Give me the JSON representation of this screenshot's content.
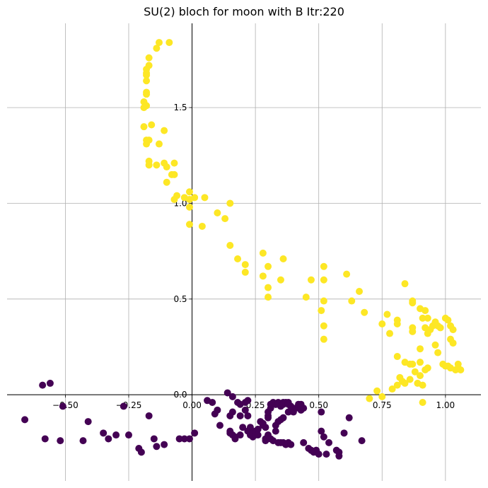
{
  "chart_data": {
    "type": "scatter",
    "title": "SU(2) bloch for moon with B Itr:220",
    "xlabel": "",
    "ylabel": "",
    "xlim": [
      -0.73,
      1.14
    ],
    "ylim": [
      -0.45,
      1.94
    ],
    "x_ticks": [
      -0.5,
      -0.25,
      0.0,
      0.25,
      0.5,
      0.75,
      1.0
    ],
    "x_tick_labels": [
      "−0.50",
      "−0.25",
      "0.00",
      "0.25",
      "0.50",
      "0.75",
      "1.00"
    ],
    "y_ticks": [
      0.0,
      0.5,
      1.0,
      1.5
    ],
    "y_tick_labels": [
      "0.0",
      "0.5",
      "1.0",
      "1.5"
    ],
    "grid": true,
    "axes_through_origin": true,
    "legend": "none",
    "series": [
      {
        "color": "#fde725",
        "points": [
          [
            -0.13,
            1.84
          ],
          [
            -0.09,
            1.84
          ],
          [
            -0.14,
            1.81
          ],
          [
            -0.17,
            1.76
          ],
          [
            -0.17,
            1.72
          ],
          [
            -0.18,
            1.7
          ],
          [
            -0.18,
            1.68
          ],
          [
            -0.18,
            1.67
          ],
          [
            -0.18,
            1.64
          ],
          [
            -0.18,
            1.58
          ],
          [
            -0.18,
            1.57
          ],
          [
            -0.19,
            1.53
          ],
          [
            -0.18,
            1.51
          ],
          [
            -0.19,
            1.5
          ],
          [
            -0.16,
            1.41
          ],
          [
            -0.19,
            1.4
          ],
          [
            -0.11,
            1.38
          ],
          [
            -0.18,
            1.33
          ],
          [
            -0.17,
            1.33
          ],
          [
            -0.18,
            1.31
          ],
          [
            -0.13,
            1.31
          ],
          [
            -0.17,
            1.22
          ],
          [
            -0.17,
            1.2
          ],
          [
            -0.11,
            1.21
          ],
          [
            -0.14,
            1.2
          ],
          [
            -0.07,
            1.21
          ],
          [
            -0.1,
            1.19
          ],
          [
            -0.08,
            1.15
          ],
          [
            -0.07,
            1.15
          ],
          [
            -0.1,
            1.11
          ],
          [
            -0.06,
            1.04
          ],
          [
            -0.07,
            1.02
          ],
          [
            -0.03,
            1.03
          ],
          [
            -0.01,
            1.06
          ],
          [
            0.01,
            1.03
          ],
          [
            -0.01,
            1.02
          ],
          [
            0.05,
            1.03
          ],
          [
            0.1,
            0.95
          ],
          [
            -0.01,
            0.98
          ],
          [
            0.15,
            1.0
          ],
          [
            0.13,
            0.92
          ],
          [
            -0.01,
            0.89
          ],
          [
            0.04,
            0.88
          ],
          [
            0.15,
            0.78
          ],
          [
            0.18,
            0.71
          ],
          [
            0.28,
            0.74
          ],
          [
            0.21,
            0.68
          ],
          [
            0.21,
            0.64
          ],
          [
            0.3,
            0.67
          ],
          [
            0.36,
            0.71
          ],
          [
            0.28,
            0.62
          ],
          [
            0.3,
            0.56
          ],
          [
            0.35,
            0.6
          ],
          [
            0.3,
            0.51
          ],
          [
            0.45,
            0.51
          ],
          [
            0.47,
            0.6
          ],
          [
            0.52,
            0.67
          ],
          [
            0.52,
            0.6
          ],
          [
            0.51,
            0.44
          ],
          [
            0.52,
            0.49
          ],
          [
            0.52,
            0.36
          ],
          [
            0.52,
            0.29
          ],
          [
            0.61,
            0.63
          ],
          [
            0.66,
            0.54
          ],
          [
            0.63,
            0.49
          ],
          [
            0.68,
            0.43
          ],
          [
            0.75,
            0.37
          ],
          [
            0.77,
            0.42
          ],
          [
            0.78,
            0.32
          ],
          [
            0.81,
            0.39
          ],
          [
            0.81,
            0.37
          ],
          [
            0.84,
            0.58
          ],
          [
            0.87,
            0.49
          ],
          [
            0.87,
            0.48
          ],
          [
            0.9,
            0.45
          ],
          [
            0.92,
            0.44
          ],
          [
            0.93,
            0.4
          ],
          [
            0.91,
            0.4
          ],
          [
            0.87,
            0.35
          ],
          [
            0.87,
            0.33
          ],
          [
            0.92,
            0.35
          ],
          [
            0.94,
            0.34
          ],
          [
            0.95,
            0.36
          ],
          [
            0.96,
            0.38
          ],
          [
            0.97,
            0.36
          ],
          [
            0.98,
            0.35
          ],
          [
            1.0,
            0.4
          ],
          [
            1.01,
            0.39
          ],
          [
            1.02,
            0.36
          ],
          [
            1.03,
            0.34
          ],
          [
            1.02,
            0.29
          ],
          [
            1.03,
            0.27
          ],
          [
            0.93,
            0.32
          ],
          [
            0.9,
            0.24
          ],
          [
            0.96,
            0.26
          ],
          [
            0.97,
            0.22
          ],
          [
            0.99,
            0.16
          ],
          [
            1.0,
            0.15
          ],
          [
            1.01,
            0.15
          ],
          [
            1.02,
            0.14
          ],
          [
            1.04,
            0.13
          ],
          [
            1.05,
            0.14
          ],
          [
            1.06,
            0.13
          ],
          [
            1.05,
            0.16
          ],
          [
            0.9,
            0.17
          ],
          [
            0.92,
            0.13
          ],
          [
            0.93,
            0.14
          ],
          [
            0.81,
            0.2
          ],
          [
            0.84,
            0.17
          ],
          [
            0.86,
            0.16
          ],
          [
            0.87,
            0.16
          ],
          [
            0.88,
            0.12
          ],
          [
            0.82,
            0.09
          ],
          [
            0.83,
            0.07
          ],
          [
            0.84,
            0.06
          ],
          [
            0.81,
            0.05
          ],
          [
            0.79,
            0.03
          ],
          [
            0.9,
            0.1
          ],
          [
            0.89,
            0.06
          ],
          [
            0.91,
            0.05
          ],
          [
            0.73,
            0.02
          ],
          [
            0.75,
            -0.01
          ],
          [
            0.7,
            -0.02
          ],
          [
            0.91,
            -0.04
          ],
          [
            0.86,
            0.08
          ]
        ]
      },
      {
        "color": "#440154",
        "points": [
          [
            -0.59,
            0.05
          ],
          [
            -0.56,
            0.06
          ],
          [
            -0.51,
            -0.06
          ],
          [
            -0.66,
            -0.13
          ],
          [
            -0.58,
            -0.23
          ],
          [
            -0.52,
            -0.24
          ],
          [
            -0.43,
            -0.24
          ],
          [
            -0.41,
            -0.14
          ],
          [
            -0.35,
            -0.2
          ],
          [
            -0.33,
            -0.23
          ],
          [
            -0.3,
            -0.21
          ],
          [
            -0.27,
            -0.06
          ],
          [
            -0.25,
            -0.21
          ],
          [
            -0.21,
            -0.28
          ],
          [
            -0.2,
            -0.3
          ],
          [
            -0.17,
            -0.11
          ],
          [
            -0.15,
            -0.23
          ],
          [
            -0.14,
            -0.27
          ],
          [
            -0.11,
            -0.26
          ],
          [
            -0.05,
            -0.23
          ],
          [
            -0.03,
            -0.23
          ],
          [
            -0.01,
            -0.23
          ],
          [
            0.01,
            -0.2
          ],
          [
            0.06,
            -0.03
          ],
          [
            0.08,
            -0.04
          ],
          [
            0.09,
            -0.1
          ],
          [
            0.1,
            -0.08
          ],
          [
            0.11,
            -0.16
          ],
          [
            0.14,
            0.01
          ],
          [
            0.16,
            -0.01
          ],
          [
            0.18,
            -0.04
          ],
          [
            0.19,
            -0.05
          ],
          [
            0.19,
            -0.11
          ],
          [
            0.16,
            -0.09
          ],
          [
            0.15,
            -0.11
          ],
          [
            0.15,
            -0.19
          ],
          [
            0.15,
            -0.2
          ],
          [
            0.16,
            -0.21
          ],
          [
            0.17,
            -0.22
          ],
          [
            0.17,
            -0.23
          ],
          [
            0.19,
            -0.21
          ],
          [
            0.2,
            -0.17
          ],
          [
            0.21,
            -0.08
          ],
          [
            0.21,
            -0.04
          ],
          [
            0.22,
            -0.03
          ],
          [
            0.22,
            -0.11
          ],
          [
            0.22,
            -0.19
          ],
          [
            0.23,
            -0.17
          ],
          [
            0.23,
            -0.21
          ],
          [
            0.24,
            -0.2
          ],
          [
            0.24,
            -0.22
          ],
          [
            0.25,
            -0.21
          ],
          [
            0.25,
            -0.19
          ],
          [
            0.26,
            -0.18
          ],
          [
            0.26,
            -0.21
          ],
          [
            0.27,
            -0.14
          ],
          [
            0.28,
            -0.15
          ],
          [
            0.28,
            -0.16
          ],
          [
            0.29,
            -0.17
          ],
          [
            0.29,
            -0.23
          ],
          [
            0.29,
            -0.24
          ],
          [
            0.3,
            -0.12
          ],
          [
            0.3,
            -0.11
          ],
          [
            0.3,
            -0.09
          ],
          [
            0.31,
            -0.07
          ],
          [
            0.31,
            -0.05
          ],
          [
            0.32,
            -0.04
          ],
          [
            0.33,
            -0.05
          ],
          [
            0.33,
            -0.05
          ],
          [
            0.34,
            -0.04
          ],
          [
            0.35,
            -0.06
          ],
          [
            0.36,
            -0.04
          ],
          [
            0.36,
            -0.05
          ],
          [
            0.37,
            -0.04
          ],
          [
            0.38,
            -0.04
          ],
          [
            0.38,
            -0.05
          ],
          [
            0.39,
            -0.06
          ],
          [
            0.38,
            -0.09
          ],
          [
            0.36,
            -0.12
          ],
          [
            0.35,
            -0.13
          ],
          [
            0.34,
            -0.14
          ],
          [
            0.33,
            -0.16
          ],
          [
            0.33,
            -0.19
          ],
          [
            0.32,
            -0.24
          ],
          [
            0.31,
            -0.23
          ],
          [
            0.3,
            -0.21
          ],
          [
            0.34,
            -0.25
          ],
          [
            0.35,
            -0.25
          ],
          [
            0.36,
            -0.25
          ],
          [
            0.37,
            -0.26
          ],
          [
            0.38,
            -0.25
          ],
          [
            0.39,
            -0.26
          ],
          [
            0.4,
            -0.09
          ],
          [
            0.41,
            -0.07
          ],
          [
            0.42,
            -0.06
          ],
          [
            0.42,
            -0.05
          ],
          [
            0.43,
            -0.05
          ],
          [
            0.43,
            -0.08
          ],
          [
            0.44,
            -0.07
          ],
          [
            0.44,
            -0.25
          ],
          [
            0.46,
            -0.28
          ],
          [
            0.47,
            -0.29
          ],
          [
            0.48,
            -0.3
          ],
          [
            0.49,
            -0.29
          ],
          [
            0.5,
            -0.31
          ],
          [
            0.51,
            -0.09
          ],
          [
            0.51,
            -0.19
          ],
          [
            0.52,
            -0.22
          ],
          [
            0.53,
            -0.31
          ],
          [
            0.54,
            -0.25
          ],
          [
            0.57,
            -0.29
          ],
          [
            0.58,
            -0.3
          ],
          [
            0.58,
            -0.32
          ],
          [
            0.6,
            -0.2
          ],
          [
            0.62,
            -0.12
          ],
          [
            0.67,
            -0.24
          ]
        ]
      }
    ]
  }
}
